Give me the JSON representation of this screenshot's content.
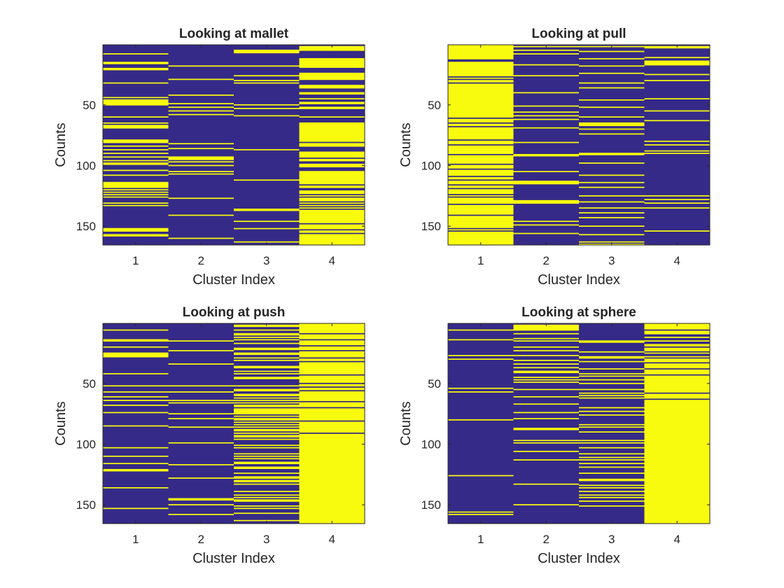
{
  "figure": {
    "background": "#ffffff",
    "colors": {
      "off": "#352a87",
      "on": "#f9fb0e",
      "axis": "#262626"
    }
  },
  "chart_data": [
    {
      "type": "heatmap",
      "title": "Looking at mallet",
      "xlabel": "Cluster Index",
      "ylabel": "Counts",
      "x": [
        1,
        2,
        3,
        4
      ],
      "xlim": [
        0.5,
        4.5
      ],
      "ylim": [
        0.5,
        165.5
      ],
      "y_direction": "reverse",
      "yticks": [
        50,
        100,
        150
      ],
      "grid": false,
      "legend": "none",
      "yellow_counts": [
        [
          8,
          15,
          16,
          20,
          21,
          32,
          44,
          46,
          47,
          48,
          49,
          50,
          60,
          65,
          67,
          68,
          69,
          79,
          80,
          81,
          84,
          87,
          90,
          93,
          96,
          98,
          99,
          104,
          108,
          114,
          115,
          116,
          117,
          118,
          120,
          122,
          124,
          126,
          131,
          133,
          152,
          153,
          154,
          157,
          158
        ],
        [
          18,
          29,
          42,
          49,
          52,
          55,
          58,
          82,
          86,
          93,
          94,
          95,
          97,
          100,
          105,
          107,
          127,
          141,
          160
        ],
        [
          5,
          6,
          7,
          18,
          26,
          30,
          32,
          50,
          53,
          59,
          87,
          112,
          136,
          137,
          146,
          152,
          163
        ],
        [
          2,
          3,
          4,
          5,
          12,
          13,
          14,
          15,
          16,
          17,
          18,
          19,
          24,
          25,
          26,
          27,
          28,
          29,
          34,
          35,
          36,
          40,
          41,
          45,
          48,
          49,
          52,
          53,
          60,
          65,
          66,
          67,
          68,
          69,
          70,
          71,
          72,
          73,
          74,
          75,
          76,
          77,
          78,
          79,
          80,
          82,
          83,
          84,
          89,
          90,
          91,
          92,
          93,
          95,
          96,
          99,
          100,
          101,
          105,
          106,
          107,
          108,
          109,
          110,
          111,
          112,
          113,
          114,
          115,
          117,
          118,
          121,
          122,
          123,
          125,
          127,
          128,
          129,
          131,
          133,
          135,
          137,
          138,
          139,
          140,
          141,
          142,
          143,
          144,
          145,
          146,
          147,
          149,
          150,
          151,
          152,
          154,
          155,
          157,
          158,
          159,
          160,
          161,
          162,
          163,
          164,
          165
        ]
      ]
    },
    {
      "type": "heatmap",
      "title": "Looking at pull",
      "xlabel": "Cluster Index",
      "ylabel": "Counts",
      "x": [
        1,
        2,
        3,
        4
      ],
      "xlim": [
        0.5,
        4.5
      ],
      "ylim": [
        0.5,
        165.5
      ],
      "y_direction": "reverse",
      "yticks": [
        50,
        100,
        150
      ],
      "grid": false,
      "legend": "none",
      "yellow_counts": [
        [
          1,
          2,
          3,
          4,
          5,
          6,
          7,
          8,
          9,
          10,
          11,
          12,
          15,
          16,
          17,
          18,
          19,
          20,
          21,
          22,
          23,
          24,
          25,
          26,
          28,
          30,
          31,
          33,
          34,
          35,
          36,
          37,
          38,
          39,
          40,
          41,
          42,
          43,
          44,
          45,
          46,
          47,
          48,
          49,
          50,
          51,
          52,
          53,
          54,
          55,
          56,
          57,
          58,
          59,
          60,
          62,
          63,
          64,
          66,
          67,
          69,
          70,
          71,
          72,
          73,
          74,
          75,
          76,
          77,
          78,
          80,
          81,
          82,
          84,
          85,
          86,
          87,
          88,
          89,
          90,
          92,
          93,
          94,
          95,
          96,
          97,
          98,
          100,
          101,
          102,
          104,
          105,
          106,
          107,
          108,
          110,
          111,
          113,
          114,
          115,
          117,
          118,
          120,
          121,
          122,
          123,
          125,
          127,
          128,
          129,
          130,
          131,
          133,
          134,
          135,
          136,
          137,
          138,
          139,
          140,
          142,
          143,
          144,
          145,
          146,
          147,
          148,
          149,
          150,
          151,
          153,
          155,
          156,
          157,
          158,
          159,
          160,
          161,
          162,
          163,
          164,
          165
        ],
        [
          2,
          5,
          8,
          17,
          26,
          40,
          51,
          56,
          59,
          62,
          69,
          81,
          91,
          92,
          105,
          113,
          114,
          115,
          129,
          130,
          131,
          146,
          149,
          156
        ],
        [
          2,
          6,
          12,
          18,
          24,
          32,
          36,
          46,
          52,
          60,
          65,
          66,
          67,
          70,
          74,
          90,
          91,
          98,
          108,
          114,
          118,
          125,
          130,
          135,
          139,
          143,
          150,
          157,
          163,
          165
        ],
        [
          2,
          3,
          11,
          14,
          15,
          16,
          17,
          25,
          30,
          45,
          55,
          63,
          80,
          83,
          88,
          90,
          125,
          128,
          131,
          135,
          154
        ]
      ]
    },
    {
      "type": "heatmap",
      "title": "Looking at push",
      "xlabel": "Cluster Index",
      "ylabel": "Counts",
      "x": [
        1,
        2,
        3,
        4
      ],
      "xlim": [
        0.5,
        4.5
      ],
      "ylim": [
        0.5,
        165.5
      ],
      "y_direction": "reverse",
      "yticks": [
        50,
        100,
        150
      ],
      "grid": false,
      "legend": "none",
      "yellow_counts": [
        [
          6,
          14,
          15,
          20,
          25,
          26,
          27,
          28,
          42,
          52,
          57,
          61,
          64,
          68,
          74,
          85,
          103,
          110,
          116,
          121,
          122,
          136,
          153
        ],
        [
          15,
          23,
          34,
          52,
          57,
          64,
          66,
          75,
          79,
          86,
          99,
          117,
          128,
          145,
          146,
          150,
          158
        ],
        [
          2,
          3,
          6,
          9,
          10,
          12,
          14,
          17,
          21,
          22,
          25,
          26,
          29,
          31,
          36,
          37,
          40,
          42,
          45,
          46,
          52,
          55,
          56,
          59,
          60,
          62,
          64,
          66,
          68,
          69,
          71,
          72,
          73,
          74,
          75,
          77,
          79,
          80,
          82,
          84,
          86,
          88,
          89,
          91,
          93,
          94,
          96,
          101,
          103,
          108,
          110,
          112,
          115,
          116,
          119,
          120,
          124,
          127,
          128,
          130,
          131,
          133,
          139,
          142,
          144,
          146,
          147,
          151,
          153,
          157,
          163
        ],
        [
          1,
          2,
          3,
          4,
          5,
          6,
          7,
          8,
          10,
          11,
          12,
          13,
          15,
          16,
          17,
          18,
          20,
          21,
          22,
          24,
          25,
          26,
          27,
          28,
          30,
          31,
          33,
          34,
          35,
          36,
          37,
          38,
          39,
          40,
          41,
          42,
          44,
          45,
          46,
          47,
          48,
          49,
          51,
          52,
          54,
          55,
          57,
          58,
          59,
          60,
          61,
          62,
          63,
          64,
          66,
          67,
          68,
          69,
          71,
          72,
          73,
          74,
          75,
          76,
          77,
          78,
          79,
          80,
          82,
          83,
          84,
          85,
          86,
          87,
          88,
          89,
          90,
          92,
          93,
          94,
          95,
          96,
          97,
          98,
          99,
          100,
          101,
          102,
          103,
          104,
          105,
          106,
          107,
          108,
          109,
          110,
          111,
          112,
          113,
          114,
          115,
          116,
          117,
          118,
          119,
          120,
          121,
          122,
          123,
          124,
          125,
          126,
          127,
          128,
          129,
          130,
          131,
          132,
          133,
          134,
          135,
          136,
          137,
          138,
          139,
          140,
          141,
          142,
          143,
          144,
          145,
          146,
          147,
          148,
          149,
          150,
          151,
          152,
          153,
          154,
          155,
          156,
          157,
          158,
          159,
          160,
          161,
          162,
          163,
          164,
          165
        ]
      ]
    },
    {
      "type": "heatmap",
      "title": "Looking at sphere",
      "xlabel": "Cluster Index",
      "ylabel": "Counts",
      "x": [
        1,
        2,
        3,
        4
      ],
      "xlim": [
        0.5,
        4.5
      ],
      "ylim": [
        0.5,
        165.5
      ],
      "y_direction": "reverse",
      "yticks": [
        50,
        100,
        150
      ],
      "grid": false,
      "legend": "none",
      "yellow_counts": [
        [
          6,
          14,
          27,
          30,
          54,
          57,
          80,
          126,
          156,
          158
        ],
        [
          2,
          3,
          4,
          5,
          6,
          9,
          13,
          15,
          20,
          23,
          27,
          31,
          34,
          37,
          40,
          41,
          45,
          47,
          49,
          55,
          61,
          67,
          74,
          79,
          87,
          88,
          97,
          99,
          106,
          113,
          133,
          150
        ],
        [
          15,
          16,
          24,
          28,
          29,
          32,
          38,
          42,
          44,
          47,
          50,
          55,
          58,
          60,
          62,
          70,
          73,
          76,
          84,
          86,
          90,
          97,
          99,
          103,
          108,
          111,
          113,
          116,
          119,
          124,
          129,
          130,
          134,
          136,
          139,
          142,
          144,
          147,
          151
        ],
        [
          1,
          2,
          3,
          4,
          5,
          7,
          8,
          9,
          12,
          15,
          18,
          19,
          21,
          22,
          23,
          25,
          28,
          30,
          31,
          32,
          34,
          35,
          36,
          37,
          39,
          40,
          41,
          42,
          44,
          45,
          46,
          47,
          48,
          49,
          50,
          51,
          52,
          53,
          54,
          55,
          56,
          57,
          59,
          60,
          61,
          62,
          64,
          65,
          66,
          67,
          68,
          69,
          70,
          71,
          72,
          73,
          74,
          75,
          76,
          77,
          78,
          79,
          80,
          81,
          82,
          83,
          84,
          85,
          86,
          87,
          88,
          89,
          90,
          91,
          92,
          93,
          94,
          95,
          96,
          97,
          98,
          99,
          100,
          101,
          102,
          103,
          104,
          105,
          106,
          107,
          108,
          109,
          110,
          111,
          112,
          113,
          114,
          115,
          116,
          117,
          118,
          119,
          120,
          121,
          122,
          123,
          124,
          125,
          126,
          127,
          128,
          129,
          130,
          131,
          132,
          133,
          134,
          135,
          136,
          137,
          138,
          139,
          140,
          141,
          142,
          143,
          144,
          145,
          146,
          147,
          148,
          149,
          150,
          151,
          152,
          153,
          154,
          155,
          156,
          157,
          158,
          159,
          160,
          161,
          162,
          163,
          164,
          165
        ]
      ]
    }
  ]
}
